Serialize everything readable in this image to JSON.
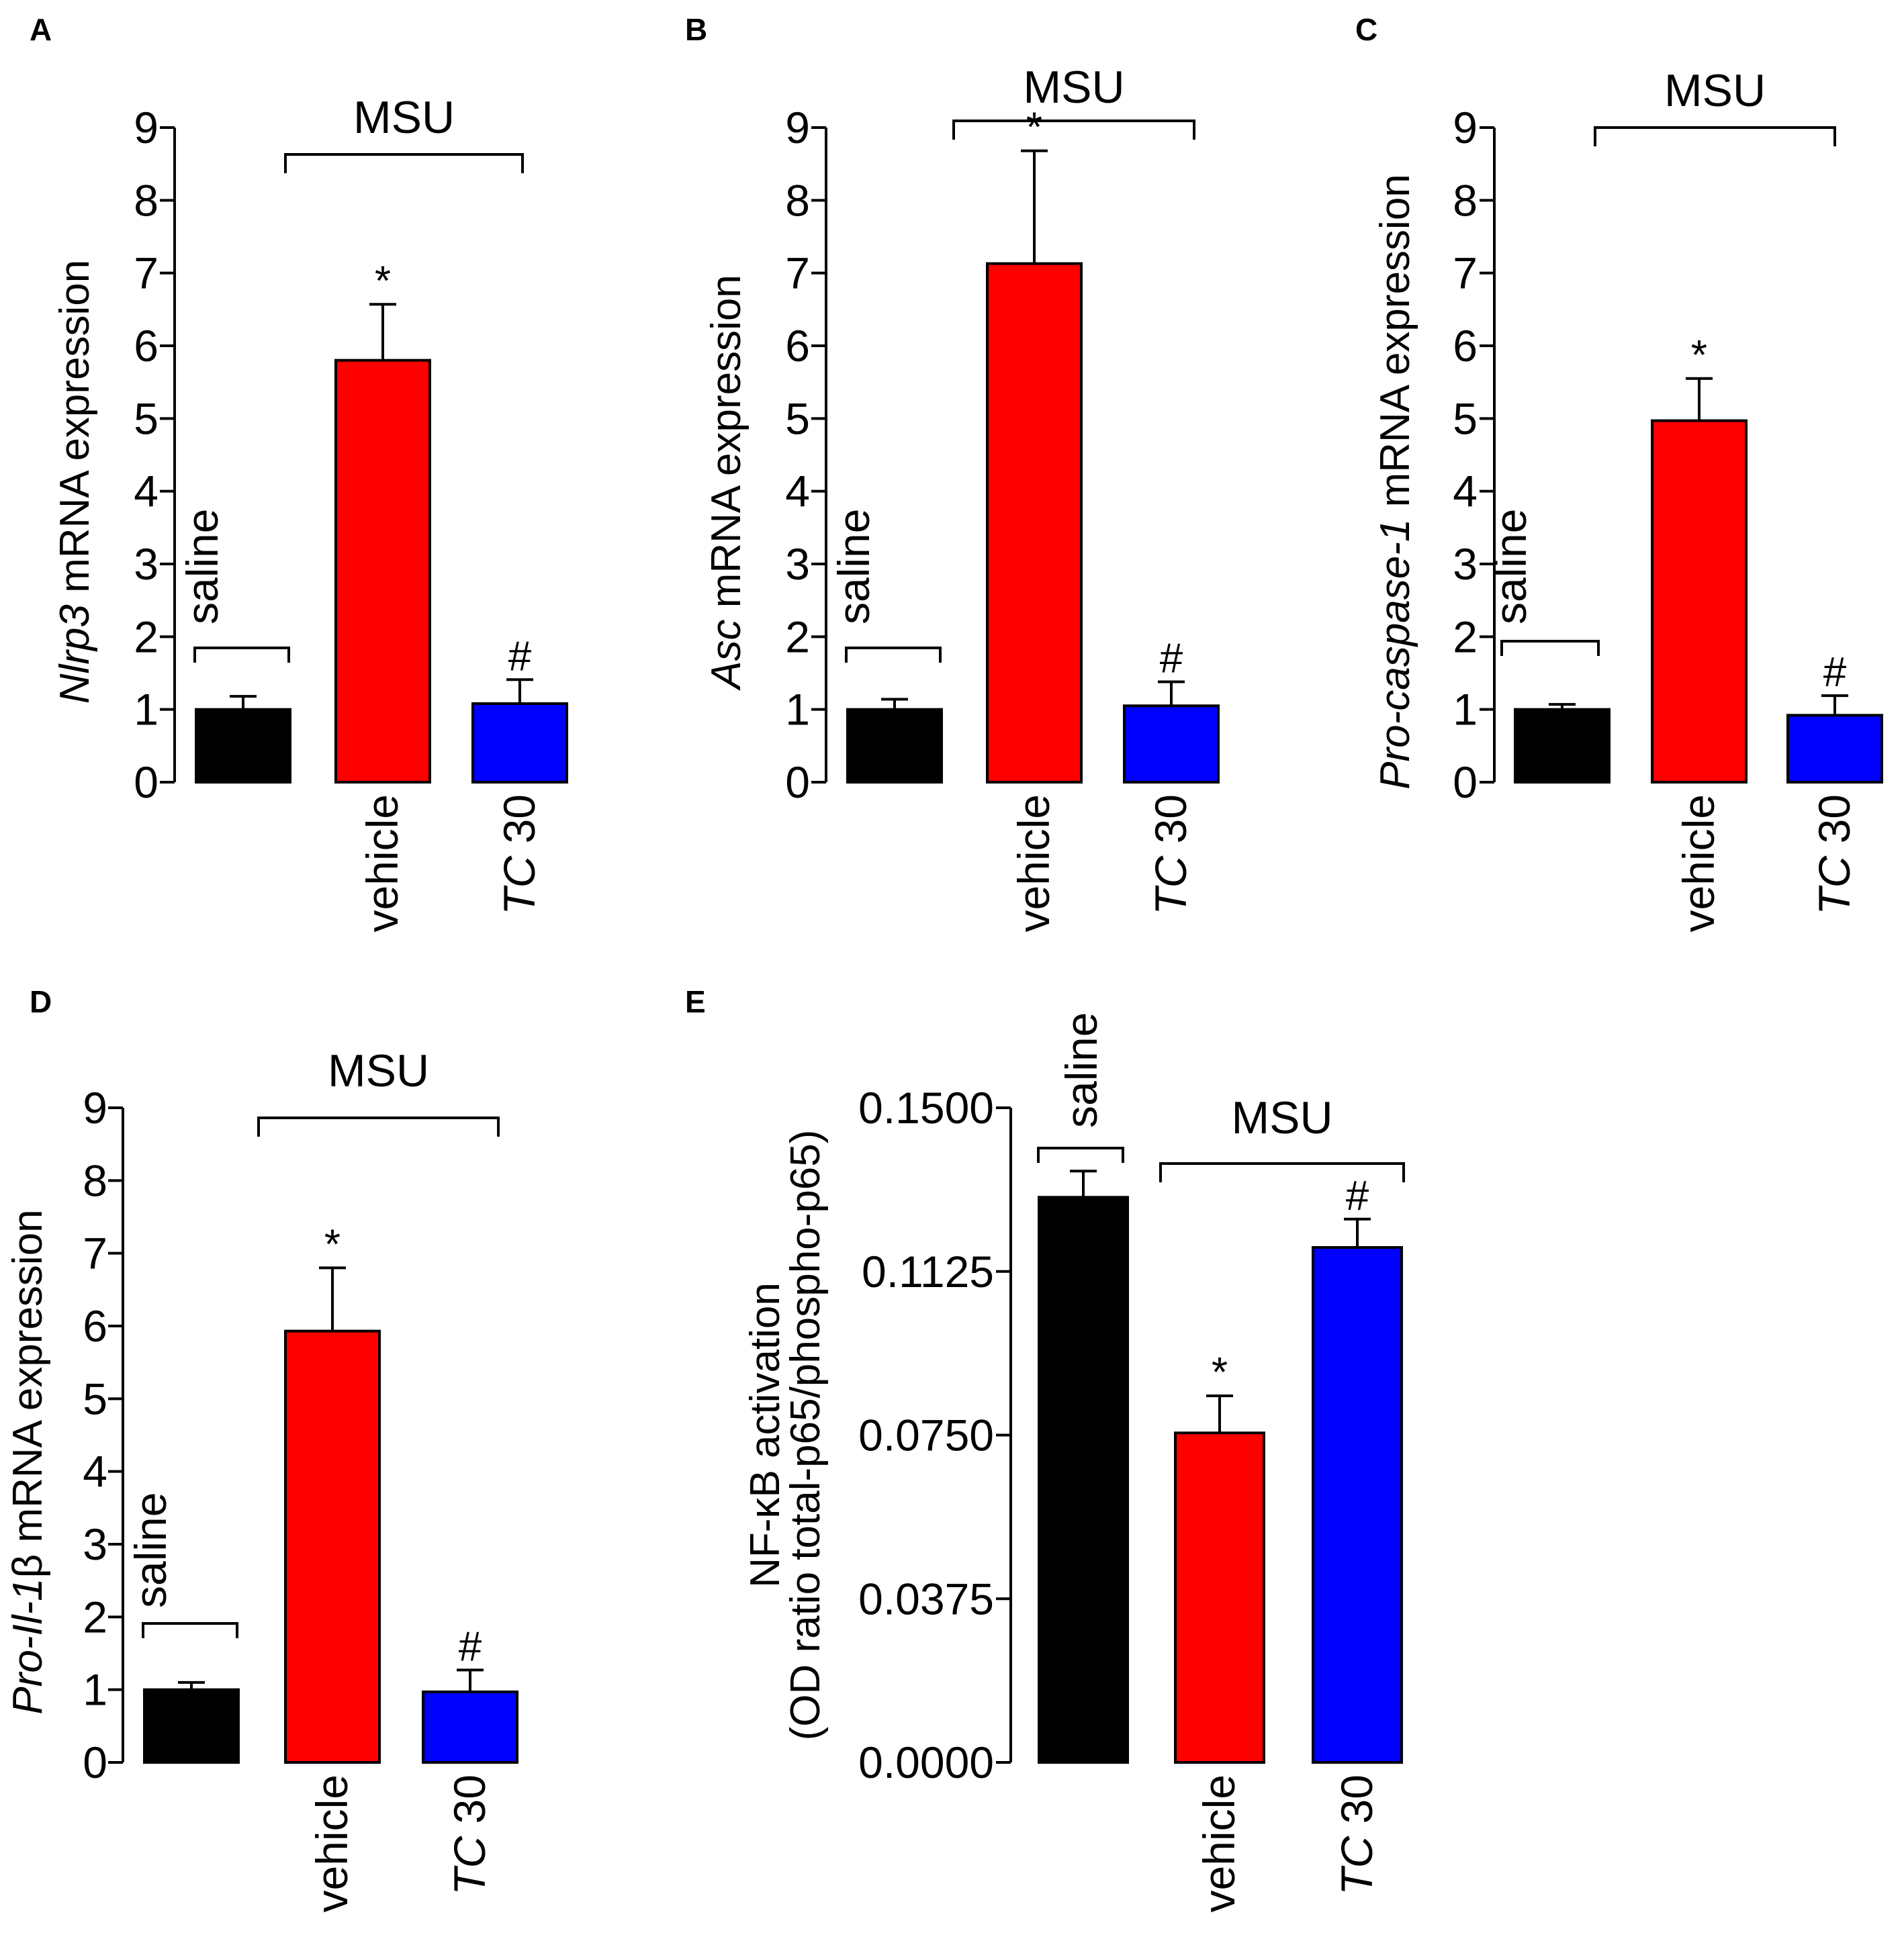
{
  "chart_data": [
    {
      "panel": "A",
      "type": "bar",
      "categories": [
        "saline",
        "vehicle",
        "TC 30"
      ],
      "values": [
        1.0,
        5.8,
        1.08
      ],
      "errors": [
        0.18,
        0.77,
        0.33
      ],
      "colors": [
        "#000000",
        "#ff0000",
        "#0000ff"
      ],
      "ylim": [
        0,
        9
      ],
      "yticks": [
        "0",
        "1",
        "2",
        "3",
        "4",
        "5",
        "6",
        "7",
        "8",
        "9"
      ],
      "ylabel_italic": "Nlrp3",
      "ylabel_rest": " mRNA expression",
      "group_label": "MSU",
      "markers": [
        "",
        "*",
        "#"
      ]
    },
    {
      "panel": "B",
      "type": "bar",
      "categories": [
        "saline",
        "vehicle",
        "TC 30"
      ],
      "values": [
        1.0,
        7.13,
        1.05
      ],
      "errors": [
        0.14,
        1.55,
        0.33
      ],
      "colors": [
        "#000000",
        "#ff0000",
        "#0000ff"
      ],
      "ylim": [
        0,
        9
      ],
      "yticks": [
        "0",
        "1",
        "2",
        "3",
        "4",
        "5",
        "6",
        "7",
        "8",
        "9"
      ],
      "ylabel_italic": "Asc",
      "ylabel_rest": " mRNA expression",
      "group_label": "MSU",
      "markers": [
        "",
        "*",
        "#"
      ]
    },
    {
      "panel": "C",
      "type": "bar",
      "categories": [
        "saline",
        "vehicle",
        "TC 30"
      ],
      "values": [
        1.0,
        4.97,
        0.92
      ],
      "errors": [
        0.07,
        0.58,
        0.27
      ],
      "colors": [
        "#000000",
        "#ff0000",
        "#0000ff"
      ],
      "ylim": [
        0,
        9
      ],
      "yticks": [
        "0",
        "1",
        "2",
        "3",
        "4",
        "5",
        "6",
        "7",
        "8",
        "9"
      ],
      "ylabel_italic": "Pro-caspase-1",
      "ylabel_rest": " mRNA expression",
      "group_label": "MSU",
      "markers": [
        "",
        "*",
        "#"
      ]
    },
    {
      "panel": "D",
      "type": "bar",
      "categories": [
        "saline",
        "vehicle",
        "TC 30"
      ],
      "values": [
        1.0,
        5.93,
        0.97
      ],
      "errors": [
        0.1,
        0.87,
        0.3
      ],
      "colors": [
        "#000000",
        "#ff0000",
        "#0000ff"
      ],
      "ylim": [
        0,
        9
      ],
      "yticks": [
        "0",
        "1",
        "2",
        "3",
        "4",
        "5",
        "6",
        "7",
        "8",
        "9"
      ],
      "ylabel_italic": "Pro-Il-1",
      "ylabel_rest": "β mRNA expression",
      "group_label": "MSU",
      "markers": [
        "",
        "*",
        "#"
      ]
    },
    {
      "panel": "E",
      "type": "bar",
      "categories": [
        "saline",
        "vehicle",
        "TC 30"
      ],
      "values": [
        0.1295,
        0.0755,
        0.118
      ],
      "errors": [
        0.006,
        0.0085,
        0.0065
      ],
      "colors": [
        "#000000",
        "#ff0000",
        "#0000ff"
      ],
      "ylim": [
        0,
        0.15
      ],
      "yticks": [
        "0.0000",
        "0.0375",
        "0.0750",
        "0.1125",
        "0.1500"
      ],
      "ylabel_line1": "NF-κB activation",
      "ylabel_line2": "(OD ratio total-p65/phospho-p65)",
      "group_label": "MSU",
      "markers": [
        "",
        "*",
        "#"
      ]
    }
  ]
}
